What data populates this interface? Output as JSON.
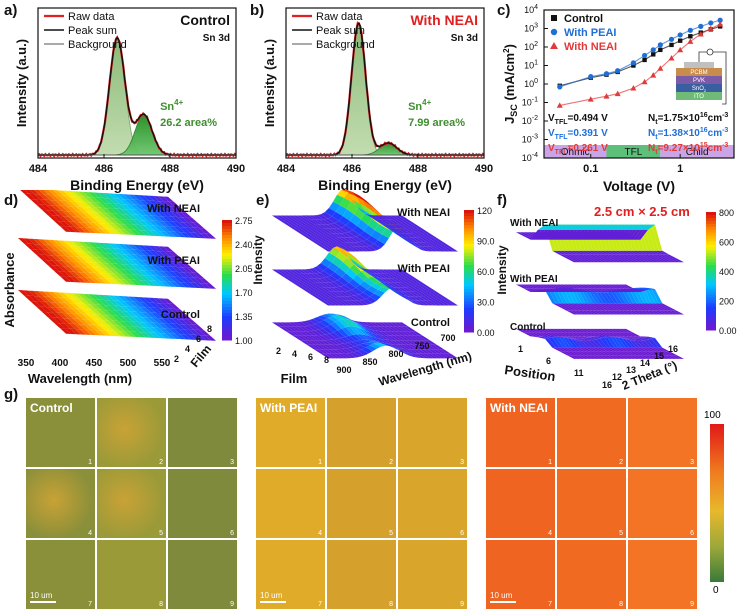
{
  "panel_labels": [
    "a)",
    "b)",
    "c)",
    "d)",
    "e)",
    "f)",
    "g)"
  ],
  "chart_data": [
    {
      "id": "a",
      "type": "line",
      "title": "Control",
      "subtitle": "Sn 3d",
      "xlabel": "Binding Energy (eV)",
      "ylabel": "Intensity (a.u.)",
      "xlim": [
        484,
        490
      ],
      "xticks": [
        "484",
        "486",
        "488",
        "490"
      ],
      "legend": [
        "Raw data",
        "Peak sum",
        "Background"
      ],
      "annotation_species": "Sn",
      "annotation_charge": "4+",
      "annotation": "26.2 area%",
      "peaks": [
        {
          "center": 486.4,
          "height": 0.78,
          "width": 0.55
        },
        {
          "center": 487.2,
          "height": 0.27,
          "width": 0.6
        }
      ],
      "background_level": 0.02
    },
    {
      "id": "b",
      "type": "line",
      "title": "With NEAI",
      "subtitle": "Sn 3d",
      "xlabel": "Binding Energy (eV)",
      "ylabel": "Intensity (a.u.)",
      "xlim": [
        484,
        490
      ],
      "xticks": [
        "484",
        "486",
        "488",
        "490"
      ],
      "legend": [
        "Raw data",
        "Peak sum",
        "Background"
      ],
      "annotation_species": "Sn",
      "annotation_charge": "4+",
      "annotation": "7.99 area%",
      "peaks": [
        {
          "center": 486.2,
          "height": 0.88,
          "width": 0.5
        },
        {
          "center": 487.1,
          "height": 0.08,
          "width": 0.6
        }
      ],
      "background_level": 0.02
    },
    {
      "id": "c",
      "type": "scatter",
      "xlabel": "Voltage (V)",
      "ylabel_main": "J",
      "ylabel_sub": "SC",
      "ylabel_unit": "(mA/cm",
      "ylabel_unit_sup": "2",
      "ylabel_close": ")",
      "xscale": "log",
      "yscale": "log",
      "xlim": [
        0.03,
        4
      ],
      "ylim": [
        0.0001,
        10000
      ],
      "xticks": [
        "0.1",
        "1"
      ],
      "ytick_base": "10",
      "ytick_exponents": [
        "4",
        "3",
        "2",
        "1",
        "0",
        "-1",
        "-2",
        "-3",
        "-4"
      ],
      "regions": [
        "Ohmic",
        "TFL",
        "Child"
      ],
      "legend_position": "top-left",
      "series": [
        {
          "name": "Control",
          "color": "#111111",
          "marker": "square",
          "vtfl": 0.494,
          "x": [
            0.045,
            0.1,
            0.15,
            0.2,
            0.3,
            0.4,
            0.5,
            0.6,
            0.8,
            1.0,
            1.3,
            1.7,
            2.2,
            2.8
          ],
          "y": [
            0.8,
            2.2,
            3.2,
            4.5,
            10,
            20,
            40,
            70,
            130,
            220,
            380,
            600,
            900,
            1300
          ]
        },
        {
          "name": "With PEAI",
          "color": "#1f6fd6",
          "marker": "circle",
          "vtfl": 0.391,
          "x": [
            0.045,
            0.1,
            0.15,
            0.2,
            0.3,
            0.4,
            0.5,
            0.6,
            0.8,
            1.0,
            1.3,
            1.7,
            2.2,
            2.8
          ],
          "y": [
            0.7,
            2.5,
            3.6,
            5.2,
            14,
            35,
            70,
            130,
            260,
            450,
            800,
            1300,
            2000,
            2800
          ]
        },
        {
          "name": "With NEAI",
          "color": "#e23a3a",
          "marker": "triangle",
          "vtfl": 0.261,
          "x": [
            0.045,
            0.1,
            0.15,
            0.2,
            0.3,
            0.4,
            0.5,
            0.6,
            0.8,
            1.0,
            1.3,
            1.7,
            2.2,
            2.8
          ],
          "y": [
            0.07,
            0.15,
            0.22,
            0.3,
            0.6,
            1.3,
            3,
            7,
            25,
            70,
            200,
            500,
            1000,
            1700
          ]
        }
      ],
      "vtfl_labels": [
        {
          "vtfl": "V",
          "sub": "TFL",
          "val": "=0.494 V",
          "nt": "N",
          "ntsub": "t",
          "ntval": "=1.75×10",
          "ntexp": "16",
          "ntunit": "cm",
          "ntunitexp": "-3",
          "color": "#111111"
        },
        {
          "vtfl": "V",
          "sub": "TFL",
          "val": "=0.391 V",
          "nt": "N",
          "ntsub": "t",
          "ntval": "=1.38×10",
          "ntexp": "16",
          "ntunit": "cm",
          "ntunitexp": "-3",
          "color": "#1f6fd6"
        },
        {
          "vtfl": "V",
          "sub": "TFL",
          "val": "=0.261 V",
          "nt": "N",
          "ntsub": "t",
          "ntval": "=9.27×10",
          "ntexp": "15",
          "ntunit": "cm",
          "ntunitexp": "-3",
          "color": "#e23a3a"
        }
      ],
      "inset_layers": [
        "PCBM",
        "PVK",
        "SnO",
        "ITO"
      ],
      "inset_layer_sub": "2"
    },
    {
      "id": "d",
      "type": "area",
      "xlabel": "Wavelength (nm)",
      "ylabel": "Absorbance",
      "zlabel": "Film",
      "xticks": [
        "350",
        "400",
        "450",
        "500",
        "550"
      ],
      "film_ticks": [
        "2",
        "4",
        "6",
        "8"
      ],
      "layers": [
        "With NEAI",
        "With PEAI",
        "Control"
      ],
      "colorbar_ticks": [
        "2.75",
        "2.40",
        "2.05",
        "1.70",
        "1.35",
        "1.00"
      ],
      "colorbar_range": [
        1.0,
        2.75
      ]
    },
    {
      "id": "e",
      "type": "area",
      "xlabel": "Wavelength (nm)",
      "ylabel": "Intensity",
      "zlabel": "Film",
      "xticks": [
        "900",
        "850",
        "800",
        "750",
        "700"
      ],
      "film_ticks": [
        "2",
        "4",
        "6",
        "8"
      ],
      "layers": [
        "With NEAI",
        "With PEAI",
        "Control"
      ],
      "colorbar_ticks": [
        "120",
        "90.0",
        "60.0",
        "30.0",
        "0.00"
      ],
      "colorbar_range": [
        0,
        120
      ]
    },
    {
      "id": "f",
      "type": "area",
      "title": "2.5 cm × 2.5 cm",
      "xlabel": "Position",
      "ylabel": "Intensity",
      "zlabel": "2 Theta (°)",
      "position_ticks": [
        "1",
        "6",
        "11",
        "16"
      ],
      "theta_ticks": [
        "12",
        "13",
        "14",
        "15",
        "16"
      ],
      "layers": [
        "With NEAI",
        "With PEAI",
        "Control"
      ],
      "colorbar_ticks": [
        "800",
        "600",
        "400",
        "200",
        "0.00"
      ],
      "colorbar_range": [
        0,
        800
      ]
    },
    {
      "id": "g",
      "type": "heatmap",
      "groups": [
        "Control",
        "With PEAI",
        "With NEAI"
      ],
      "tile_numbers": [
        "1",
        "2",
        "3",
        "4",
        "5",
        "6",
        "7",
        "8",
        "9"
      ],
      "scalebar": "10 um",
      "colorbar_ticks": [
        "100",
        "0"
      ],
      "colorbar_range": [
        0,
        100
      ]
    }
  ]
}
